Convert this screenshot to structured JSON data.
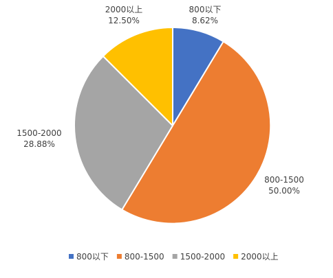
{
  "chart_data": {
    "type": "pie",
    "title": "",
    "categories": [
      "800以下",
      "800-1500",
      "1500-2000",
      "2000以上"
    ],
    "values": [
      8.62,
      50.0,
      28.88,
      12.5
    ],
    "value_labels": [
      "8.62%",
      "50.00%",
      "28.88%",
      "12.50%"
    ],
    "colors": [
      "#4472C4",
      "#ED7D31",
      "#A5A5A5",
      "#FFC000"
    ],
    "legend_position": "bottom",
    "start_angle": "12 o'clock",
    "direction": "clockwise"
  }
}
